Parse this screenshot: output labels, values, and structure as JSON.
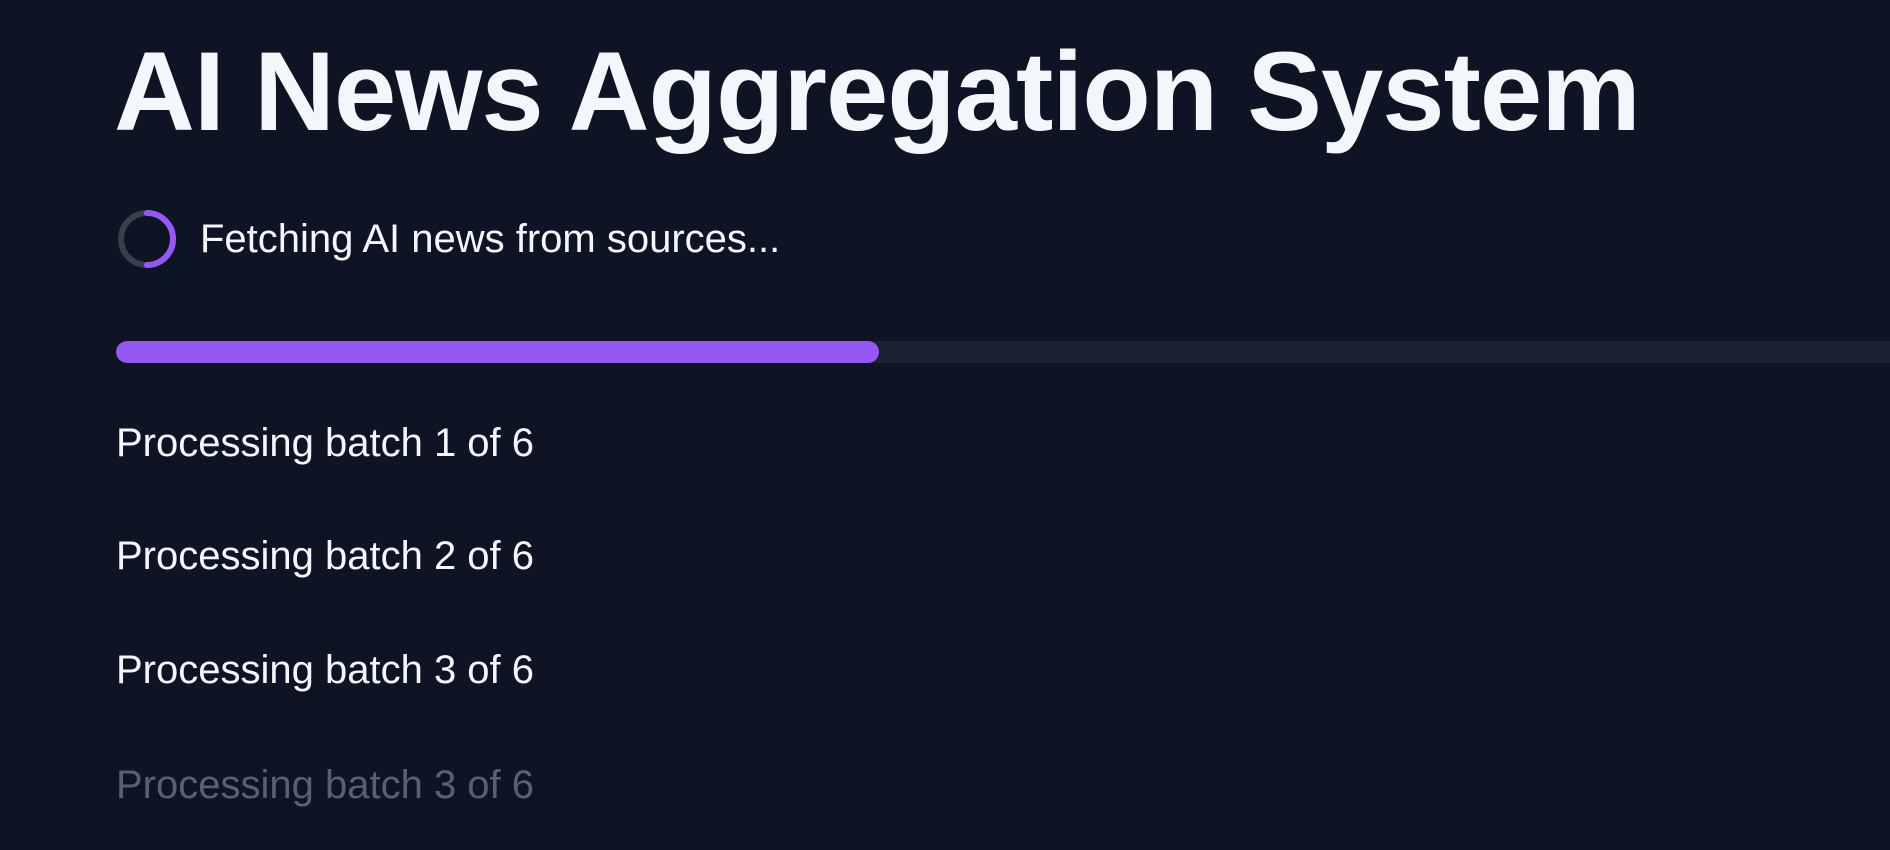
{
  "page": {
    "title": "AI News Aggregation System"
  },
  "status": {
    "icon": "spinner-icon",
    "text": "Fetching AI news from sources..."
  },
  "progress": {
    "value": 0.43
  },
  "batches": [
    "Processing batch 1 of 6",
    "Processing batch 2 of 6",
    "Processing batch 3 of 6",
    "Processing batch 3 of 6"
  ],
  "colors": {
    "background": "#0f1424",
    "accent": "#9558f2",
    "text": "#f3f6fa",
    "muted_text": "#5a6070",
    "track": "#1d2233"
  }
}
